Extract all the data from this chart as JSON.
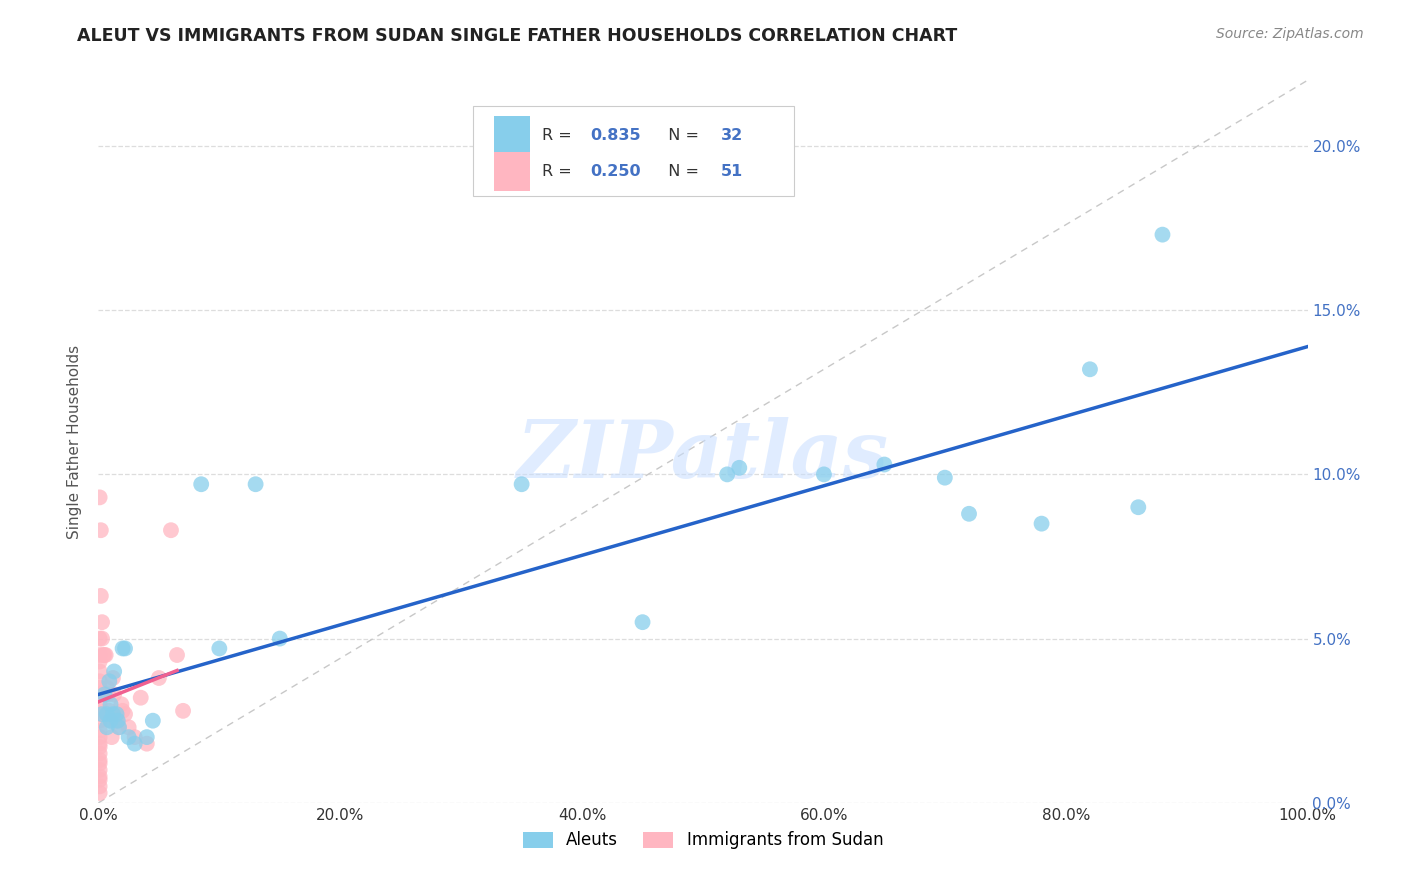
{
  "title": "ALEUT VS IMMIGRANTS FROM SUDAN SINGLE FATHER HOUSEHOLDS CORRELATION CHART",
  "source": "Source: ZipAtlas.com",
  "ylabel": "Single Father Households",
  "xlabel_ticks": [
    "0.0%",
    "20.0%",
    "40.0%",
    "60.0%",
    "80.0%",
    "100.0%"
  ],
  "ylabel_ticks": [
    "0.0%",
    "5.0%",
    "10.0%",
    "15.0%",
    "20.0%"
  ],
  "xlim": [
    0,
    1.0
  ],
  "ylim": [
    0,
    0.22
  ],
  "aleut_color": "#87CEEB",
  "sudan_color": "#FFB6C1",
  "aleut_line_color": "#2563C9",
  "sudan_line_color": "#F06090",
  "diagonal_color": "#C8C8C8",
  "watermark": "ZIPatlas",
  "tick_color": "#4472C4",
  "aleut_points": [
    [
      0.003,
      0.027
    ],
    [
      0.005,
      0.033
    ],
    [
      0.007,
      0.027
    ],
    [
      0.007,
      0.023
    ],
    [
      0.009,
      0.037
    ],
    [
      0.01,
      0.03
    ],
    [
      0.01,
      0.025
    ],
    [
      0.012,
      0.027
    ],
    [
      0.013,
      0.04
    ],
    [
      0.015,
      0.027
    ],
    [
      0.016,
      0.025
    ],
    [
      0.017,
      0.023
    ],
    [
      0.02,
      0.047
    ],
    [
      0.022,
      0.047
    ],
    [
      0.025,
      0.02
    ],
    [
      0.03,
      0.018
    ],
    [
      0.04,
      0.02
    ],
    [
      0.045,
      0.025
    ],
    [
      0.085,
      0.097
    ],
    [
      0.1,
      0.047
    ],
    [
      0.13,
      0.097
    ],
    [
      0.15,
      0.05
    ],
    [
      0.35,
      0.097
    ],
    [
      0.45,
      0.055
    ],
    [
      0.52,
      0.1
    ],
    [
      0.53,
      0.102
    ],
    [
      0.6,
      0.1
    ],
    [
      0.65,
      0.103
    ],
    [
      0.7,
      0.099
    ],
    [
      0.72,
      0.088
    ],
    [
      0.78,
      0.085
    ],
    [
      0.82,
      0.132
    ],
    [
      0.86,
      0.09
    ],
    [
      0.88,
      0.173
    ]
  ],
  "sudan_points": [
    [
      0.001,
      0.093
    ],
    [
      0.001,
      0.05
    ],
    [
      0.001,
      0.045
    ],
    [
      0.001,
      0.043
    ],
    [
      0.001,
      0.04
    ],
    [
      0.001,
      0.037
    ],
    [
      0.001,
      0.035
    ],
    [
      0.001,
      0.033
    ],
    [
      0.001,
      0.03
    ],
    [
      0.001,
      0.028
    ],
    [
      0.001,
      0.027
    ],
    [
      0.001,
      0.025
    ],
    [
      0.001,
      0.022
    ],
    [
      0.001,
      0.02
    ],
    [
      0.001,
      0.018
    ],
    [
      0.001,
      0.017
    ],
    [
      0.001,
      0.015
    ],
    [
      0.001,
      0.013
    ],
    [
      0.001,
      0.012
    ],
    [
      0.001,
      0.01
    ],
    [
      0.001,
      0.008
    ],
    [
      0.001,
      0.007
    ],
    [
      0.001,
      0.005
    ],
    [
      0.001,
      0.003
    ],
    [
      0.002,
      0.083
    ],
    [
      0.002,
      0.063
    ],
    [
      0.003,
      0.055
    ],
    [
      0.003,
      0.05
    ],
    [
      0.004,
      0.045
    ],
    [
      0.005,
      0.045
    ],
    [
      0.006,
      0.045
    ],
    [
      0.007,
      0.035
    ],
    [
      0.008,
      0.033
    ],
    [
      0.009,
      0.028
    ],
    [
      0.01,
      0.025
    ],
    [
      0.011,
      0.02
    ],
    [
      0.012,
      0.038
    ],
    [
      0.013,
      0.033
    ],
    [
      0.015,
      0.025
    ],
    [
      0.017,
      0.023
    ],
    [
      0.019,
      0.03
    ],
    [
      0.02,
      0.028
    ],
    [
      0.022,
      0.027
    ],
    [
      0.025,
      0.023
    ],
    [
      0.03,
      0.02
    ],
    [
      0.035,
      0.032
    ],
    [
      0.04,
      0.018
    ],
    [
      0.05,
      0.038
    ],
    [
      0.06,
      0.083
    ],
    [
      0.065,
      0.045
    ],
    [
      0.07,
      0.028
    ]
  ],
  "background_color": "#FFFFFF",
  "grid_color": "#DDDDDD",
  "legend_R_color": "#4472C4",
  "legend_N_color": "#4472C4",
  "legend_text_color": "#333333"
}
